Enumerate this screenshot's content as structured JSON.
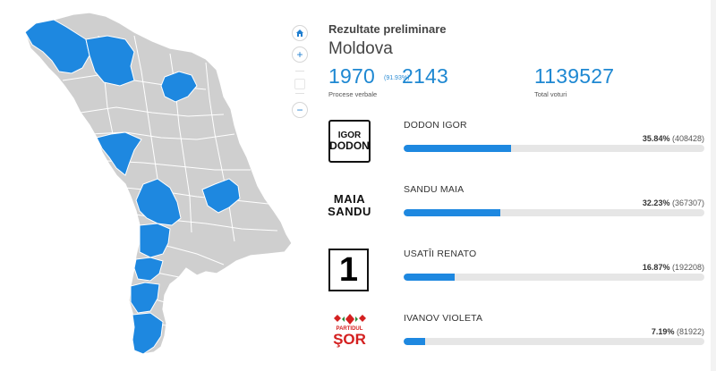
{
  "header": {
    "subtitle": "Rezultate preliminare",
    "region": "Moldova"
  },
  "stats": {
    "processed": "1970",
    "processed_pct": "(91.93%)",
    "processed_label": "Procese verbale",
    "total_processes": "2143",
    "total_votes": "1139527",
    "total_votes_label": "Total voturi"
  },
  "map_controls": {
    "home_icon": "home-icon",
    "zoom_in_icon": "plus-icon",
    "zoom_out_icon": "minus-icon"
  },
  "colors": {
    "accent": "#1e88d2",
    "region_grey": "#cfcfcf",
    "region_blue": "#1e88e0",
    "bar_track": "#e6e6e6"
  },
  "candidates": [
    {
      "name": "DODON IGOR",
      "pct": "35.84%",
      "votes": "(408428)",
      "share": 35.84,
      "logo_line1": "IGOR",
      "logo_line2": "DODON"
    },
    {
      "name": "SANDU MAIA",
      "pct": "32.23%",
      "votes": "(367307)",
      "share": 32.23,
      "logo_line1": "MAIA",
      "logo_line2": "SANDU"
    },
    {
      "name": "USATÎI RENATO",
      "pct": "16.87%",
      "votes": "(192208)",
      "share": 16.87,
      "logo_line1": "1"
    },
    {
      "name": "IVANOV VIOLETA",
      "pct": "7.19%",
      "votes": "(81922)",
      "share": 7.19,
      "logo_line1": "PARTIDUL",
      "logo_line2": "ŞOR"
    }
  ]
}
